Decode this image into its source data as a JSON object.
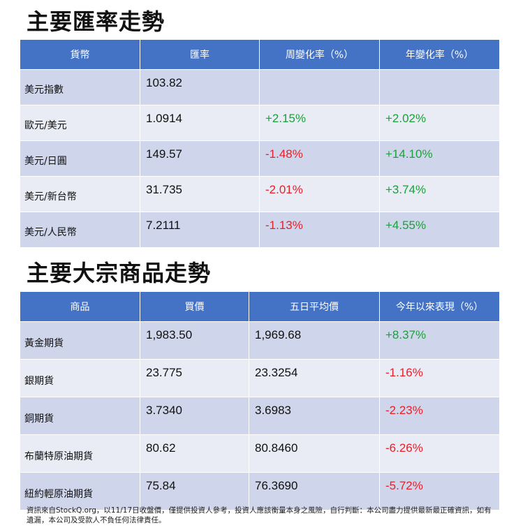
{
  "fx": {
    "title": "主要匯率走勢",
    "headers": [
      "貨幣",
      "匯率",
      "周變化率（%）",
      "年變化率（%）"
    ],
    "rows": [
      {
        "name": "美元指數",
        "rate": "103.82",
        "week": "",
        "year": ""
      },
      {
        "name": "歐元/美元",
        "rate": "1.0914",
        "week": "+2.15%",
        "year": "+2.02%"
      },
      {
        "name": "美元/日圓",
        "rate": "149.57",
        "week": "-1.48%",
        "year": "+14.10%"
      },
      {
        "name": "美元/新台幣",
        "rate": "31.735",
        "week": "-2.01%",
        "year": "+3.74%"
      },
      {
        "name": "美元/人民幣",
        "rate": "7.2111",
        "week": "-1.13%",
        "year": "+4.55%"
      }
    ]
  },
  "commodities": {
    "title": "主要大宗商品走勢",
    "headers": [
      "商品",
      "買價",
      "五日平均價",
      "今年以來表現（%）"
    ],
    "rows": [
      {
        "name": "黃金期貨",
        "bid": "1,983.50",
        "avg5": "1,969.68",
        "ytd": "+8.37%"
      },
      {
        "name": "銀期貨",
        "bid": "23.775",
        "avg5": "23.3254",
        "ytd": "-1.16%"
      },
      {
        "name": "銅期貨",
        "bid": "3.7340",
        "avg5": "3.6983",
        "ytd": "-2.23%"
      },
      {
        "name": "布蘭特原油期貨",
        "bid": "80.62",
        "avg5": "80.8460",
        "ytd": "-6.26%"
      },
      {
        "name": "紐約輕原油期貨",
        "bid": "75.84",
        "avg5": "76.3690",
        "ytd": "-5.72%"
      }
    ]
  },
  "colors": {
    "header_bg": "#4472c4",
    "row_odd": "#cfd5ea",
    "row_even": "#e9ebf5",
    "positive": "#1aa139",
    "negative": "#e8202a"
  },
  "footnote": "資訊來自StockQ.org，以11/17日收盤價，僅提供投資人參考，投資人應該衡量本身之風險，自行判斷：本公司盡力提供最新最正確資訊，如有遺漏，本公司及受款人不負任何法律責任。"
}
